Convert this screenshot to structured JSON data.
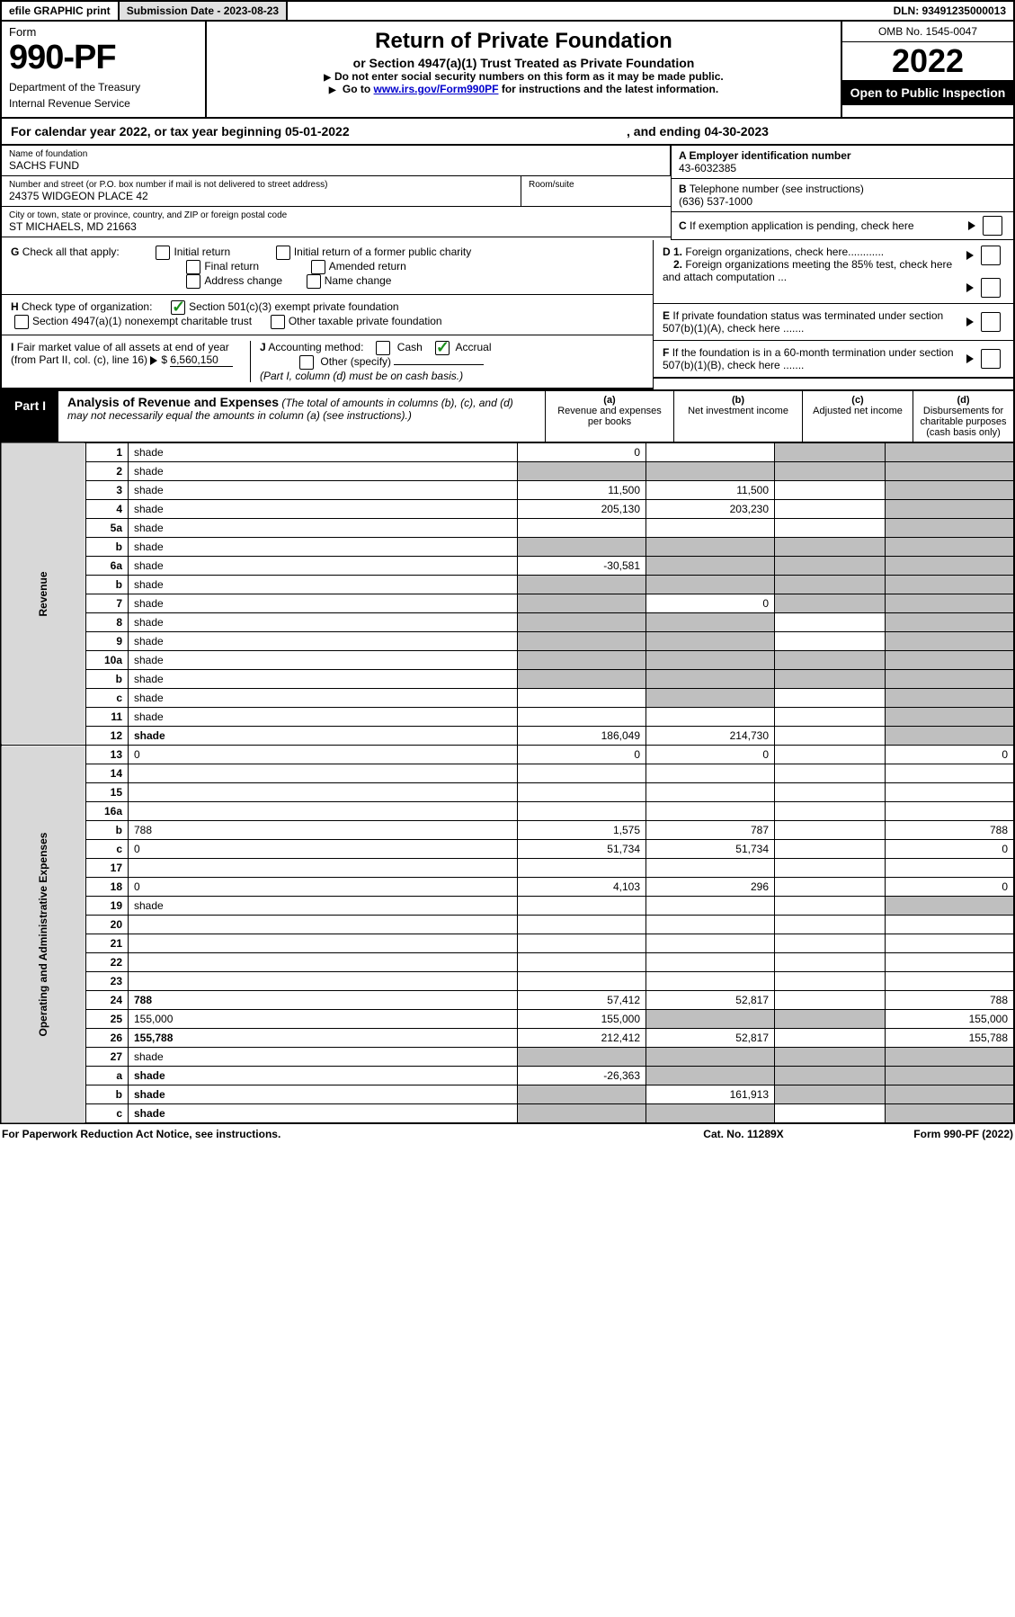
{
  "top_bar": {
    "efile": "efile GRAPHIC print",
    "submission_label": "Submission Date - 2023-08-23",
    "dln": "DLN: 93491235000013"
  },
  "header": {
    "form_word": "Form",
    "form_no": "990-PF",
    "dept": "Department of the Treasury",
    "irs": "Internal Revenue Service",
    "title": "Return of Private Foundation",
    "subtitle": "or Section 4947(a)(1) Trust Treated as Private Foundation",
    "note1": "Do not enter social security numbers on this form as it may be made public.",
    "note2_a": "Go to ",
    "note2_link": "www.irs.gov/Form990PF",
    "note2_b": " for instructions and the latest information.",
    "omb": "OMB No. 1545-0047",
    "year": "2022",
    "opi": "Open to Public Inspection"
  },
  "cal_row": {
    "a": "For calendar year 2022, or tax year beginning 05-01-2022",
    "b": ", and ending 04-30-2023"
  },
  "info": {
    "name_label": "Name of foundation",
    "name": "SACHS FUND",
    "addr_label": "Number and street (or P.O. box number if mail is not delivered to street address)",
    "addr": "24375 WIDGEON PLACE 42",
    "room_label": "Room/suite",
    "city_label": "City or town, state or province, country, and ZIP or foreign postal code",
    "city": "ST MICHAELS, MD  21663",
    "a_label": "A Employer identification number",
    "a_val": "43-6032385",
    "b_label": "B",
    "b_text": "Telephone number (see instructions)",
    "b_val": "(636) 537-1000",
    "c_label": "C",
    "c_text": "If exemption application is pending, check here"
  },
  "checks": {
    "g_label": "G",
    "g_text": "Check all that apply:",
    "g_opts": [
      "Initial return",
      "Final return",
      "Address change",
      "Initial return of a former public charity",
      "Amended return",
      "Name change"
    ],
    "h_label": "H",
    "h_text": "Check type of organization:",
    "h_opt1": "Section 501(c)(3) exempt private foundation",
    "h_opt2": "Section 4947(a)(1) nonexempt charitable trust",
    "h_opt3": "Other taxable private foundation",
    "i_label": "I",
    "i_text_a": "Fair market value of all assets at end of year (from Part II, col. (c),",
    "i_text_b": "line 16)",
    "i_val": "6,560,150",
    "j_label": "J",
    "j_text": "Accounting method:",
    "j_cash": "Cash",
    "j_accrual": "Accrual",
    "j_other": "Other (specify)",
    "j_note": "(Part I, column (d) must be on cash basis.)",
    "d1": "D 1.",
    "d1_text": "Foreign organizations, check here............",
    "d2": "2.",
    "d2_text": "Foreign organizations meeting the 85% test, check here and attach computation ...",
    "e_label": "E",
    "e_text": "If private foundation status was terminated under section 507(b)(1)(A), check here .......",
    "f_label": "F",
    "f_text": "If the foundation is in a 60-month termination under section 507(b)(1)(B), check here ......."
  },
  "part1": {
    "tag": "Part I",
    "title": "Analysis of Revenue and Expenses",
    "note": "(The total of amounts in columns (b), (c), and (d) may not necessarily equal the amounts in column (a) (see instructions).)",
    "col_a": "(a)",
    "col_a_t": "Revenue and expenses per books",
    "col_b": "(b)",
    "col_b_t": "Net investment income",
    "col_c": "(c)",
    "col_c_t": "Adjusted net income",
    "col_d": "(d)",
    "col_d_t": "Disbursements for charitable purposes (cash basis only)"
  },
  "sections": {
    "revenue": "Revenue",
    "expenses": "Operating and Administrative Expenses"
  },
  "rows": [
    {
      "n": "1",
      "d": "shade",
      "a": "0",
      "b": "",
      "c": "shade"
    },
    {
      "n": "2",
      "d": "shade",
      "a": "shade",
      "b": "shade",
      "c": "shade",
      "not_bold": true
    },
    {
      "n": "3",
      "d": "shade",
      "a": "11,500",
      "b": "11,500",
      "c": ""
    },
    {
      "n": "4",
      "d": "shade",
      "a": "205,130",
      "b": "203,230",
      "c": ""
    },
    {
      "n": "5a",
      "d": "shade",
      "a": "",
      "b": "",
      "c": ""
    },
    {
      "n": "b",
      "d": "shade",
      "a": "shade",
      "b": "shade",
      "c": "shade"
    },
    {
      "n": "6a",
      "d": "shade",
      "a": "-30,581",
      "b": "shade",
      "c": "shade"
    },
    {
      "n": "b",
      "d": "shade",
      "a": "shade",
      "b": "shade",
      "c": "shade"
    },
    {
      "n": "7",
      "d": "shade",
      "a": "shade",
      "b": "0",
      "c": "shade"
    },
    {
      "n": "8",
      "d": "shade",
      "a": "shade",
      "b": "shade",
      "c": ""
    },
    {
      "n": "9",
      "d": "shade",
      "a": "shade",
      "b": "shade",
      "c": ""
    },
    {
      "n": "10a",
      "d": "shade",
      "a": "shade",
      "b": "shade",
      "c": "shade"
    },
    {
      "n": "b",
      "d": "shade",
      "a": "shade",
      "b": "shade",
      "c": "shade"
    },
    {
      "n": "c",
      "d": "shade",
      "a": "",
      "b": "shade",
      "c": ""
    },
    {
      "n": "11",
      "d": "shade",
      "a": "",
      "b": "",
      "c": ""
    },
    {
      "n": "12",
      "d": "shade",
      "a": "186,049",
      "b": "214,730",
      "c": "",
      "bold": true
    }
  ],
  "exp_rows": [
    {
      "n": "13",
      "d": "0",
      "a": "0",
      "b": "0",
      "c": ""
    },
    {
      "n": "14",
      "d": "",
      "a": "",
      "b": "",
      "c": ""
    },
    {
      "n": "15",
      "d": "",
      "a": "",
      "b": "",
      "c": ""
    },
    {
      "n": "16a",
      "d": "",
      "a": "",
      "b": "",
      "c": ""
    },
    {
      "n": "b",
      "d": "788",
      "a": "1,575",
      "b": "787",
      "c": ""
    },
    {
      "n": "c",
      "d": "0",
      "a": "51,734",
      "b": "51,734",
      "c": ""
    },
    {
      "n": "17",
      "d": "",
      "a": "",
      "b": "",
      "c": ""
    },
    {
      "n": "18",
      "d": "0",
      "a": "4,103",
      "b": "296",
      "c": ""
    },
    {
      "n": "19",
      "d": "shade",
      "a": "",
      "b": "",
      "c": ""
    },
    {
      "n": "20",
      "d": "",
      "a": "",
      "b": "",
      "c": ""
    },
    {
      "n": "21",
      "d": "",
      "a": "",
      "b": "",
      "c": ""
    },
    {
      "n": "22",
      "d": "",
      "a": "",
      "b": "",
      "c": ""
    },
    {
      "n": "23",
      "d": "",
      "a": "",
      "b": "",
      "c": ""
    },
    {
      "n": "24",
      "d": "788",
      "a": "57,412",
      "b": "52,817",
      "c": "",
      "bold": true
    },
    {
      "n": "25",
      "d": "155,000",
      "a": "155,000",
      "b": "shade",
      "c": "shade"
    },
    {
      "n": "26",
      "d": "155,788",
      "a": "212,412",
      "b": "52,817",
      "c": "",
      "bold": true
    }
  ],
  "end_rows": [
    {
      "n": "27",
      "d": "shade",
      "a": "shade",
      "b": "shade",
      "c": "shade"
    },
    {
      "n": "a",
      "d": "shade",
      "a": "-26,363",
      "b": "shade",
      "c": "shade",
      "bold": true
    },
    {
      "n": "b",
      "d": "shade",
      "a": "shade",
      "b": "161,913",
      "c": "shade",
      "bold": true
    },
    {
      "n": "c",
      "d": "shade",
      "a": "shade",
      "b": "shade",
      "c": "",
      "bold": true
    }
  ],
  "footer": {
    "left": "For Paperwork Reduction Act Notice, see instructions.",
    "mid": "Cat. No. 11289X",
    "right": "Form 990-PF (2022)"
  }
}
